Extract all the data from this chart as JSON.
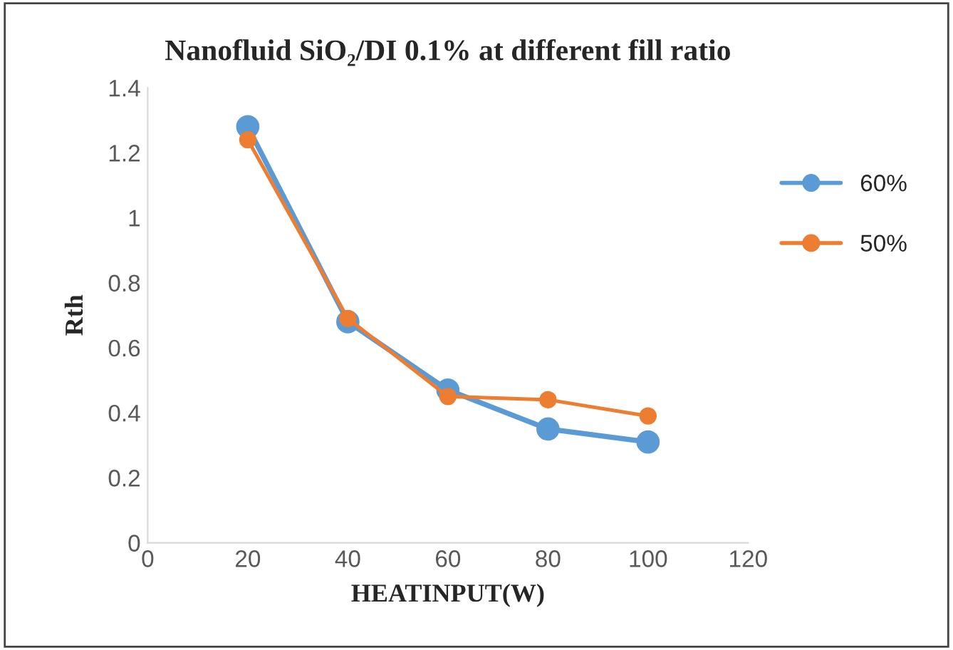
{
  "chart_data": {
    "type": "line",
    "title": "Nanofluid SiO₂/DI 0.1% at different fill ratio",
    "xlabel": "HEATINPUT(W)",
    "ylabel": "Rth",
    "x": [
      20,
      40,
      60,
      80,
      100
    ],
    "series": [
      {
        "name": "60%",
        "color": "#5b9bd5",
        "values": [
          1.28,
          0.68,
          0.47,
          0.35,
          0.31
        ]
      },
      {
        "name": "50%",
        "color": "#ed7d31",
        "values": [
          1.24,
          0.69,
          0.45,
          0.44,
          0.39
        ]
      }
    ],
    "xlim": [
      0,
      120
    ],
    "xticks": [
      0,
      20,
      40,
      60,
      80,
      100,
      120
    ],
    "ylim": [
      0,
      1.4
    ],
    "yticks": [
      0,
      0.2,
      0.4,
      0.6,
      0.8,
      1,
      1.2,
      1.4
    ],
    "marker": "circle",
    "line_style": "solid",
    "grid": false,
    "legend": "right"
  }
}
